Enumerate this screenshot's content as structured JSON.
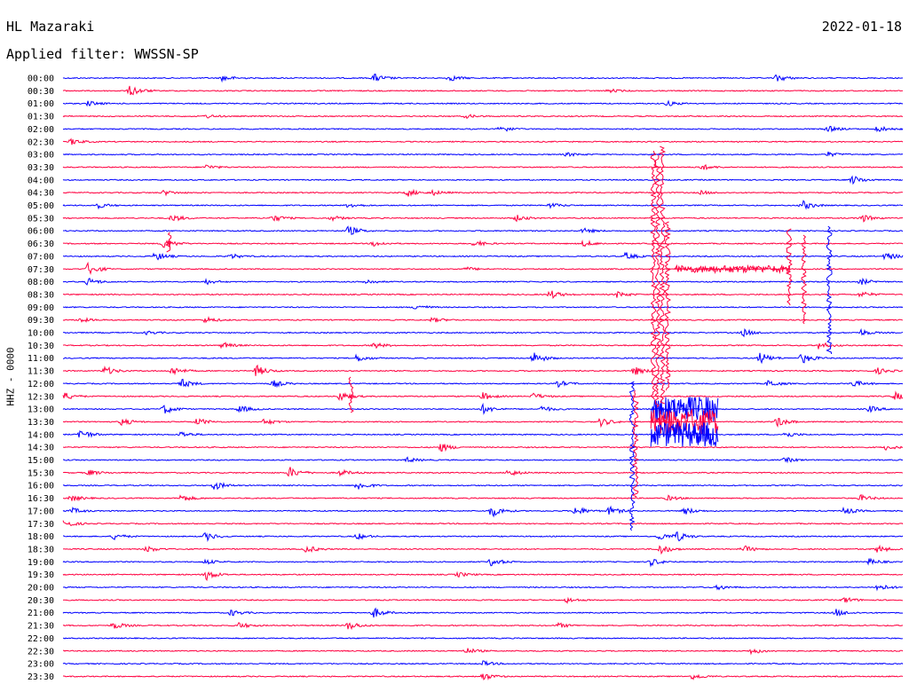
{
  "header": {
    "station": "HL Mazaraki",
    "date": "2022-01-18",
    "filter_label": "Applied filter: WWSSN-SP"
  },
  "axis": {
    "channel_label": "HHZ - 0000"
  },
  "colors": {
    "blue": "#0000ff",
    "red": "#ff0040",
    "background": "#ffffff"
  },
  "chart_data": {
    "type": "line",
    "title": "",
    "row_labels": [
      "00:00",
      "00:30",
      "01:00",
      "01:30",
      "02:00",
      "02:30",
      "03:00",
      "03:30",
      "04:00",
      "04:30",
      "05:00",
      "05:30",
      "06:00",
      "06:30",
      "07:00",
      "07:30",
      "08:00",
      "08:30",
      "09:00",
      "09:30",
      "10:00",
      "10:30",
      "11:00",
      "11:30",
      "12:00",
      "12:30",
      "13:00",
      "13:30",
      "14:00",
      "14:30",
      "15:00",
      "15:30",
      "16:00",
      "16:30",
      "17:00",
      "17:30",
      "18:00",
      "18:30",
      "19:00",
      "19:30",
      "20:00",
      "20:30",
      "21:00",
      "21:30",
      "22:00",
      "22:30",
      "23:00",
      "23:30"
    ],
    "row_colors": [
      "blue",
      "red"
    ],
    "minutes_per_row": 30,
    "events": [
      {
        "row": 0,
        "t": 0.19,
        "amp": 0.5
      },
      {
        "row": 0,
        "t": 0.37,
        "amp": 0.7
      },
      {
        "row": 0,
        "t": 0.46,
        "amp": 0.5
      },
      {
        "row": 0,
        "t": 0.85,
        "amp": 0.6
      },
      {
        "row": 1,
        "t": 0.08,
        "amp": 0.9
      },
      {
        "row": 1,
        "t": 0.65,
        "amp": 0.3
      },
      {
        "row": 2,
        "t": 0.03,
        "amp": 0.4
      },
      {
        "row": 2,
        "t": 0.72,
        "amp": 0.4
      },
      {
        "row": 3,
        "t": 0.17,
        "amp": 0.3
      },
      {
        "row": 3,
        "t": 0.48,
        "amp": 0.3
      },
      {
        "row": 4,
        "t": 0.52,
        "amp": 0.6
      },
      {
        "row": 4,
        "t": 0.91,
        "amp": 0.5
      },
      {
        "row": 4,
        "t": 0.97,
        "amp": 0.5
      },
      {
        "row": 5,
        "t": 0.01,
        "amp": 0.5
      },
      {
        "row": 6,
        "t": 0.6,
        "amp": 0.3
      },
      {
        "row": 6,
        "t": 0.91,
        "amp": 0.4
      },
      {
        "row": 7,
        "t": 0.17,
        "amp": 0.4
      },
      {
        "row": 7,
        "t": 0.76,
        "amp": 0.5
      },
      {
        "row": 8,
        "t": 0.94,
        "amp": 0.7
      },
      {
        "row": 9,
        "t": 0.12,
        "amp": 0.4
      },
      {
        "row": 9,
        "t": 0.41,
        "amp": 0.6
      },
      {
        "row": 9,
        "t": 0.44,
        "amp": 0.4
      },
      {
        "row": 9,
        "t": 0.76,
        "amp": 0.3
      },
      {
        "row": 10,
        "t": 0.04,
        "amp": 0.5
      },
      {
        "row": 10,
        "t": 0.34,
        "amp": 0.4
      },
      {
        "row": 10,
        "t": 0.58,
        "amp": 0.4
      },
      {
        "row": 10,
        "t": 0.88,
        "amp": 0.8
      },
      {
        "row": 11,
        "t": 0.13,
        "amp": 0.6
      },
      {
        "row": 11,
        "t": 0.25,
        "amp": 0.6
      },
      {
        "row": 11,
        "t": 0.32,
        "amp": 0.4
      },
      {
        "row": 11,
        "t": 0.54,
        "amp": 0.5
      },
      {
        "row": 11,
        "t": 0.95,
        "amp": 0.7
      },
      {
        "row": 12,
        "t": 0.34,
        "amp": 0.8
      },
      {
        "row": 12,
        "t": 0.62,
        "amp": 0.4
      },
      {
        "row": 13,
        "t": 0.12,
        "amp": 1.0
      },
      {
        "row": 13,
        "t": 0.37,
        "amp": 0.4
      },
      {
        "row": 13,
        "t": 0.49,
        "amp": 0.5
      },
      {
        "row": 13,
        "t": 0.62,
        "amp": 0.5
      },
      {
        "row": 14,
        "t": 0.11,
        "amp": 0.7
      },
      {
        "row": 14,
        "t": 0.2,
        "amp": 0.4
      },
      {
        "row": 14,
        "t": 0.67,
        "amp": 0.6
      },
      {
        "row": 14,
        "t": 0.98,
        "amp": 0.7
      },
      {
        "row": 15,
        "t": 0.03,
        "amp": 1.0
      },
      {
        "row": 15,
        "t": 0.48,
        "amp": 0.3
      },
      {
        "row": 16,
        "t": 0.03,
        "amp": 0.6
      },
      {
        "row": 16,
        "t": 0.17,
        "amp": 0.4
      },
      {
        "row": 16,
        "t": 0.36,
        "amp": 0.4
      },
      {
        "row": 16,
        "t": 0.95,
        "amp": 0.5
      },
      {
        "row": 17,
        "t": 0.58,
        "amp": 0.7
      },
      {
        "row": 17,
        "t": 0.66,
        "amp": 0.5
      },
      {
        "row": 17,
        "t": 0.95,
        "amp": 0.5
      },
      {
        "row": 18,
        "t": 0.42,
        "amp": 0.5
      },
      {
        "row": 19,
        "t": 0.02,
        "amp": 0.4
      },
      {
        "row": 19,
        "t": 0.17,
        "amp": 0.5
      },
      {
        "row": 19,
        "t": 0.44,
        "amp": 0.4
      },
      {
        "row": 20,
        "t": 0.1,
        "amp": 0.3
      },
      {
        "row": 20,
        "t": 0.81,
        "amp": 0.6
      },
      {
        "row": 20,
        "t": 0.95,
        "amp": 0.5
      },
      {
        "row": 21,
        "t": 0.19,
        "amp": 0.5
      },
      {
        "row": 21,
        "t": 0.37,
        "amp": 0.5
      },
      {
        "row": 21,
        "t": 0.9,
        "amp": 0.6
      },
      {
        "row": 22,
        "t": 0.35,
        "amp": 0.6
      },
      {
        "row": 22,
        "t": 0.56,
        "amp": 1.0
      },
      {
        "row": 22,
        "t": 0.83,
        "amp": 0.9
      },
      {
        "row": 22,
        "t": 0.88,
        "amp": 0.9
      },
      {
        "row": 23,
        "t": 0.05,
        "amp": 0.7
      },
      {
        "row": 23,
        "t": 0.13,
        "amp": 0.7
      },
      {
        "row": 23,
        "t": 0.23,
        "amp": 0.9
      },
      {
        "row": 23,
        "t": 0.68,
        "amp": 0.7
      },
      {
        "row": 23,
        "t": 0.97,
        "amp": 0.5
      },
      {
        "row": 24,
        "t": 0.14,
        "amp": 0.8
      },
      {
        "row": 24,
        "t": 0.25,
        "amp": 0.6
      },
      {
        "row": 24,
        "t": 0.59,
        "amp": 0.5
      },
      {
        "row": 24,
        "t": 0.84,
        "amp": 0.6
      },
      {
        "row": 24,
        "t": 0.94,
        "amp": 0.6
      },
      {
        "row": 25,
        "t": 0.0,
        "amp": 0.7
      },
      {
        "row": 25,
        "t": 0.33,
        "amp": 0.8
      },
      {
        "row": 25,
        "t": 0.5,
        "amp": 0.6
      },
      {
        "row": 25,
        "t": 0.56,
        "amp": 0.5
      },
      {
        "row": 25,
        "t": 0.99,
        "amp": 0.7
      },
      {
        "row": 26,
        "t": 0.12,
        "amp": 0.8
      },
      {
        "row": 26,
        "t": 0.21,
        "amp": 0.6
      },
      {
        "row": 26,
        "t": 0.5,
        "amp": 0.7
      },
      {
        "row": 26,
        "t": 0.57,
        "amp": 0.5
      },
      {
        "row": 26,
        "t": 0.96,
        "amp": 0.5
      },
      {
        "row": 27,
        "t": 0.07,
        "amp": 0.6
      },
      {
        "row": 27,
        "t": 0.16,
        "amp": 0.6
      },
      {
        "row": 27,
        "t": 0.24,
        "amp": 0.5
      },
      {
        "row": 27,
        "t": 0.64,
        "amp": 0.7
      },
      {
        "row": 27,
        "t": 0.85,
        "amp": 0.8
      },
      {
        "row": 28,
        "t": 0.02,
        "amp": 0.9
      },
      {
        "row": 28,
        "t": 0.14,
        "amp": 0.5
      },
      {
        "row": 28,
        "t": 0.75,
        "amp": 0.5
      },
      {
        "row": 28,
        "t": 0.86,
        "amp": 0.5
      },
      {
        "row": 29,
        "t": 0.45,
        "amp": 0.7
      },
      {
        "row": 29,
        "t": 0.98,
        "amp": 0.4
      },
      {
        "row": 30,
        "t": 0.41,
        "amp": 0.4
      },
      {
        "row": 30,
        "t": 0.86,
        "amp": 0.4
      },
      {
        "row": 31,
        "t": 0.03,
        "amp": 0.5
      },
      {
        "row": 31,
        "t": 0.27,
        "amp": 0.9
      },
      {
        "row": 31,
        "t": 0.33,
        "amp": 0.5
      },
      {
        "row": 31,
        "t": 0.53,
        "amp": 0.6
      },
      {
        "row": 32,
        "t": 0.18,
        "amp": 0.7
      },
      {
        "row": 32,
        "t": 0.35,
        "amp": 0.8
      },
      {
        "row": 33,
        "t": 0.01,
        "amp": 0.5
      },
      {
        "row": 33,
        "t": 0.14,
        "amp": 0.6
      },
      {
        "row": 33,
        "t": 0.72,
        "amp": 0.4
      },
      {
        "row": 33,
        "t": 0.95,
        "amp": 0.5
      },
      {
        "row": 34,
        "t": 0.01,
        "amp": 0.5
      },
      {
        "row": 34,
        "t": 0.51,
        "amp": 1.0
      },
      {
        "row": 34,
        "t": 0.61,
        "amp": 0.8
      },
      {
        "row": 34,
        "t": 0.65,
        "amp": 0.7
      },
      {
        "row": 34,
        "t": 0.74,
        "amp": 0.6
      },
      {
        "row": 34,
        "t": 0.93,
        "amp": 0.6
      },
      {
        "row": 35,
        "t": 0.0,
        "amp": 0.7
      },
      {
        "row": 36,
        "t": 0.06,
        "amp": 0.5
      },
      {
        "row": 36,
        "t": 0.17,
        "amp": 0.7
      },
      {
        "row": 36,
        "t": 0.35,
        "amp": 0.5
      },
      {
        "row": 36,
        "t": 0.71,
        "amp": 0.6
      },
      {
        "row": 36,
        "t": 0.73,
        "amp": 0.8
      },
      {
        "row": 37,
        "t": 0.1,
        "amp": 0.5
      },
      {
        "row": 37,
        "t": 0.29,
        "amp": 0.6
      },
      {
        "row": 37,
        "t": 0.71,
        "amp": 0.9
      },
      {
        "row": 37,
        "t": 0.81,
        "amp": 0.6
      },
      {
        "row": 37,
        "t": 0.97,
        "amp": 0.6
      },
      {
        "row": 38,
        "t": 0.17,
        "amp": 0.4
      },
      {
        "row": 38,
        "t": 0.51,
        "amp": 0.7
      },
      {
        "row": 38,
        "t": 0.7,
        "amp": 0.6
      },
      {
        "row": 38,
        "t": 0.96,
        "amp": 0.5
      },
      {
        "row": 39,
        "t": 0.17,
        "amp": 0.9
      },
      {
        "row": 39,
        "t": 0.47,
        "amp": 0.4
      },
      {
        "row": 40,
        "t": 0.78,
        "amp": 0.4
      },
      {
        "row": 40,
        "t": 0.97,
        "amp": 0.6
      },
      {
        "row": 41,
        "t": 0.6,
        "amp": 0.4
      },
      {
        "row": 41,
        "t": 0.93,
        "amp": 0.5
      },
      {
        "row": 42,
        "t": 0.2,
        "amp": 0.5
      },
      {
        "row": 42,
        "t": 0.37,
        "amp": 0.8
      },
      {
        "row": 42,
        "t": 0.92,
        "amp": 0.6
      },
      {
        "row": 43,
        "t": 0.06,
        "amp": 0.6
      },
      {
        "row": 43,
        "t": 0.21,
        "amp": 0.5
      },
      {
        "row": 43,
        "t": 0.34,
        "amp": 0.7
      },
      {
        "row": 43,
        "t": 0.59,
        "amp": 0.4
      },
      {
        "row": 45,
        "t": 0.48,
        "amp": 0.5
      },
      {
        "row": 45,
        "t": 0.82,
        "amp": 0.5
      },
      {
        "row": 46,
        "t": 0.5,
        "amp": 0.4
      },
      {
        "row": 47,
        "t": 0.5,
        "amp": 0.6
      },
      {
        "row": 47,
        "t": 0.75,
        "amp": 0.5
      }
    ],
    "major_event": {
      "row": 26,
      "t": 0.7,
      "end_t": 0.78,
      "peak_rows_span": 9
    },
    "evening_spike_rows": [
      7,
      8,
      9,
      10,
      11,
      12,
      13,
      14,
      15,
      16,
      17,
      18,
      19,
      20,
      21,
      22,
      23,
      24,
      25
    ]
  }
}
